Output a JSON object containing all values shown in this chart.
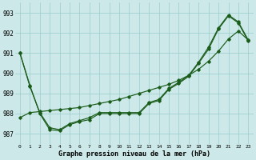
{
  "xlabel": "Graphe pression niveau de la mer (hPa)",
  "background_color": "#cce8e8",
  "line_color": "#1a5c1a",
  "grid_color": "#99cccc",
  "xlim": [
    -0.5,
    23.5
  ],
  "ylim": [
    986.5,
    993.5
  ],
  "yticks": [
    987,
    988,
    989,
    990,
    991,
    992,
    993
  ],
  "xticks": [
    0,
    1,
    2,
    3,
    4,
    5,
    6,
    7,
    8,
    9,
    10,
    11,
    12,
    13,
    14,
    15,
    16,
    17,
    18,
    19,
    20,
    21,
    22,
    23
  ],
  "line1_x": [
    0,
    1,
    2,
    3,
    4,
    5,
    6,
    7,
    8,
    9,
    10,
    11,
    12,
    13,
    14,
    15,
    16,
    17,
    18,
    19,
    20,
    21,
    22,
    23
  ],
  "line1_y": [
    991.0,
    989.4,
    988.0,
    987.2,
    987.15,
    987.45,
    987.6,
    987.7,
    988.0,
    988.0,
    988.0,
    988.0,
    988.0,
    988.5,
    988.65,
    989.2,
    989.5,
    989.85,
    990.5,
    991.2,
    992.2,
    992.85,
    992.5,
    991.6
  ],
  "line2_x": [
    0,
    1,
    2,
    3,
    4,
    5,
    6,
    7,
    8,
    9,
    10,
    11,
    12,
    13,
    14,
    15,
    16,
    17,
    18,
    19,
    20,
    21,
    22,
    23
  ],
  "line2_y": [
    991.0,
    989.35,
    988.05,
    987.3,
    987.2,
    987.5,
    987.65,
    987.8,
    988.05,
    988.05,
    988.05,
    988.05,
    988.05,
    988.55,
    988.7,
    989.25,
    989.55,
    989.9,
    990.55,
    991.3,
    992.25,
    992.9,
    992.55,
    991.65
  ],
  "line3_x": [
    0,
    1,
    2,
    3,
    4,
    5,
    6,
    7,
    8,
    9,
    10,
    11,
    12,
    13,
    14,
    15,
    16,
    17,
    18,
    19,
    20,
    21,
    22,
    23
  ],
  "line3_y": [
    987.8,
    988.05,
    988.1,
    988.15,
    988.2,
    988.25,
    988.3,
    988.4,
    988.5,
    988.6,
    988.7,
    988.85,
    989.0,
    989.15,
    989.3,
    989.45,
    989.65,
    989.9,
    990.2,
    990.6,
    991.1,
    991.7,
    992.1,
    991.65
  ]
}
